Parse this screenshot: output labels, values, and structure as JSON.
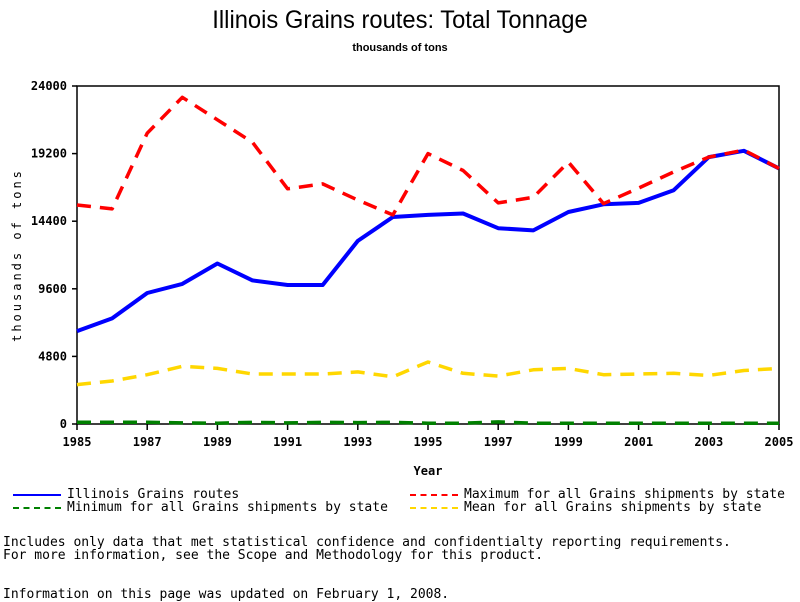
{
  "chart_data": {
    "type": "line",
    "title": "Illinois Grains routes: Total Tonnage",
    "subtitle": "thousands of tons",
    "xlabel": "Year",
    "ylabel": "thousands of tons",
    "x": [
      1985,
      1986,
      1987,
      1988,
      1989,
      1990,
      1991,
      1992,
      1993,
      1994,
      1995,
      1996,
      1997,
      1998,
      1999,
      2000,
      2001,
      2002,
      2003,
      2004,
      2005
    ],
    "xlim": [
      1985,
      2005
    ],
    "ylim": [
      0,
      24000
    ],
    "x_ticks": [
      "1985",
      "1987",
      "1989",
      "1991",
      "1993",
      "1995",
      "1997",
      "1999",
      "2001",
      "2003",
      "2005"
    ],
    "y_ticks": [
      "0",
      "4800",
      "9600",
      "14400",
      "19200",
      "24000"
    ],
    "grid": false,
    "legend_position": "bottom",
    "series": [
      {
        "name": "Illinois Grains routes",
        "color": "#0000ff",
        "style": "solid",
        "values": [
          6600,
          7500,
          9300,
          9950,
          11400,
          10200,
          9870,
          9870,
          13000,
          14700,
          14850,
          14950,
          13900,
          13750,
          15050,
          15600,
          15700,
          16600,
          18950,
          19400,
          18150
        ]
      },
      {
        "name": "Maximum for all Grains shipments by state",
        "color": "#ff0000",
        "style": "dashed",
        "values": [
          15550,
          15270,
          20650,
          23200,
          21600,
          20000,
          16700,
          17050,
          15900,
          14850,
          19200,
          18000,
          15700,
          16100,
          18600,
          15650,
          16750,
          17900,
          18950,
          19450,
          18150
        ]
      },
      {
        "name": "Minimum for all Grains shipments by state",
        "color": "#008000",
        "style": "dashed",
        "values": [
          120,
          120,
          120,
          80,
          60,
          120,
          80,
          120,
          100,
          120,
          60,
          60,
          150,
          60,
          60,
          60,
          60,
          60,
          60,
          60,
          60
        ]
      },
      {
        "name": "Mean for all Grains shipments by state",
        "color": "#ffd700",
        "style": "dashed",
        "values": [
          2800,
          3050,
          3500,
          4100,
          3950,
          3550,
          3550,
          3550,
          3700,
          3350,
          4400,
          3600,
          3400,
          3850,
          3950,
          3500,
          3550,
          3600,
          3450,
          3800,
          3950
        ]
      }
    ]
  },
  "legend": [
    {
      "label": "Illinois Grains routes",
      "color": "#0000ff",
      "style": "solid"
    },
    {
      "label": "Maximum for all Grains shipments by state",
      "color": "#ff0000",
      "style": "dashed"
    },
    {
      "label": "Minimum for all Grains shipments by state",
      "color": "#008000",
      "style": "dashed"
    },
    {
      "label": "Mean for all Grains shipments by state",
      "color": "#ffd700",
      "style": "dashed"
    }
  ],
  "notes": {
    "line1": "Includes only data that met statistical confidence and confidentialty reporting requirements.",
    "line2": "For more information, see the Scope and Methodology for this product.",
    "updated": "Information on this page was updated on February 1, 2008."
  }
}
